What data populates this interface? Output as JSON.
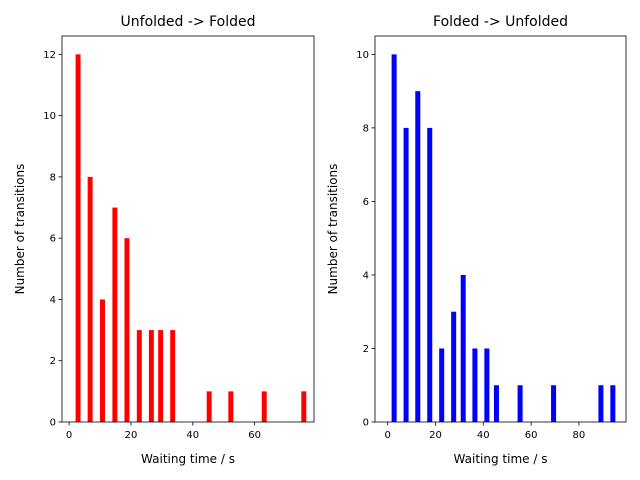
{
  "chart_data": [
    {
      "type": "bar",
      "title": "Unfolded -> Folded",
      "xlabel": "Waiting time / s",
      "ylabel": "Number of transitions",
      "color": "#ff0000",
      "xlim": [
        -2.3,
        79.2
      ],
      "ylim": [
        0,
        12.6
      ],
      "xticks": [
        0,
        20,
        40,
        60
      ],
      "yticks": [
        0,
        2,
        4,
        6,
        8,
        10,
        12
      ],
      "bar_width": 1.6,
      "x": [
        2.9,
        6.8,
        10.8,
        14.8,
        18.7,
        22.7,
        26.6,
        29.6,
        33.5,
        45.3,
        52.3,
        63.1,
        75.9
      ],
      "values": [
        12,
        8,
        4,
        7,
        6,
        3,
        3,
        3,
        3,
        1,
        1,
        1,
        1
      ]
    },
    {
      "type": "bar",
      "title": "Folded -> Unfolded",
      "xlabel": "Waiting time / s",
      "ylabel": "Number of transitions",
      "color": "#0000ff",
      "xlim": [
        -5.3,
        99.7
      ],
      "ylim": [
        0,
        10.5
      ],
      "xticks": [
        0,
        20,
        40,
        60,
        80
      ],
      "yticks": [
        0,
        2,
        4,
        6,
        8,
        10
      ],
      "bar_width": 2.1,
      "x": [
        2.7,
        7.7,
        12.6,
        17.6,
        22.6,
        27.6,
        31.6,
        36.5,
        41.5,
        45.5,
        55.4,
        69.4,
        89.2,
        94.2
      ],
      "values": [
        10,
        8,
        9,
        8,
        2,
        3,
        4,
        2,
        2,
        1,
        1,
        1,
        1,
        1
      ]
    }
  ]
}
